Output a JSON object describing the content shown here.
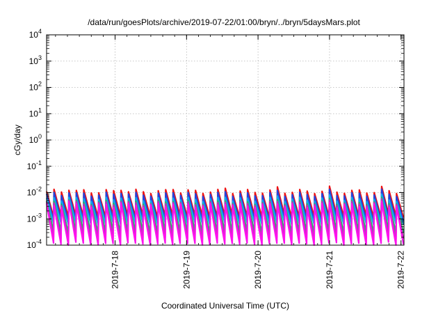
{
  "chart_data": {
    "type": "line",
    "title": "/data/run/goesPlots/archive/2019-07-22/01:00/bryn/../bryn/5daysMars.plot",
    "xlabel": "Coordinated Universal Time (UTC)",
    "ylabel": "cGy/day",
    "y_scale": "log",
    "ylim": [
      0.0001,
      10000
    ],
    "y_ticks": [
      {
        "value": 0.0001,
        "base": "10",
        "exp": "-4"
      },
      {
        "value": 0.001,
        "base": "10",
        "exp": "-3"
      },
      {
        "value": 0.01,
        "base": "10",
        "exp": "-2"
      },
      {
        "value": 0.1,
        "base": "10",
        "exp": "-1"
      },
      {
        "value": 1,
        "base": "10",
        "exp": "0"
      },
      {
        "value": 10,
        "base": "10",
        "exp": "1"
      },
      {
        "value": 100,
        "base": "10",
        "exp": "2"
      },
      {
        "value": 1000,
        "base": "10",
        "exp": "3"
      },
      {
        "value": 10000,
        "base": "10",
        "exp": "4"
      }
    ],
    "xlim": [
      "2019-07-17 01:00",
      "2019-07-22 01:00"
    ],
    "x_ticks": [
      {
        "value": "2019-07-18 00:00",
        "label": "2019-7-18"
      },
      {
        "value": "2019-07-19 00:00",
        "label": "2019-7-19"
      },
      {
        "value": "2019-07-20 00:00",
        "label": "2019-7-20"
      },
      {
        "value": "2019-07-21 00:00",
        "label": "2019-7-21"
      },
      {
        "value": "2019-07-22 00:00",
        "label": "2019-7-22"
      }
    ],
    "grid": true,
    "legend": "none",
    "series": [
      {
        "color": "#ee1111",
        "peak": 0.011,
        "trough": 0.0012
      },
      {
        "color": "#2244dd",
        "peak": 0.0085,
        "trough": 0.00085
      },
      {
        "color": "#11aaee",
        "peak": 0.0055,
        "trough": 0.00065
      },
      {
        "color": "#22bb66",
        "peak": 0.0042,
        "trough": 0.00032
      },
      {
        "color": "#bb33bb",
        "peak": 0.0038,
        "trough": 0.00018
      },
      {
        "color": "#ff11ee",
        "peak": 0.0032,
        "trough": 0.00011
      }
    ]
  }
}
